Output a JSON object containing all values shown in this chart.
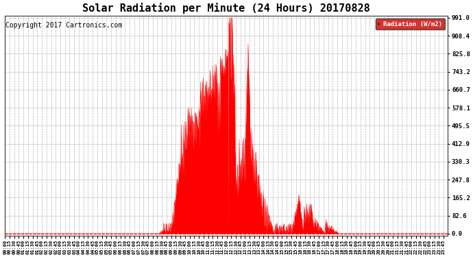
{
  "title": "Solar Radiation per Minute (24 Hours) 20170828",
  "copyright_text": "Copyright 2017 Cartronics.com",
  "legend_label": "Radiation (W/m2)",
  "ytick_labels": [
    "0.0",
    "82.6",
    "165.2",
    "247.8",
    "330.3",
    "412.9",
    "495.5",
    "578.1",
    "660.7",
    "743.2",
    "825.8",
    "908.4",
    "991.0"
  ],
  "ymax": 991.0,
  "fill_color": "#ff0000",
  "line_color": "#ff0000",
  "legend_bg": "#cc0000",
  "legend_text_color": "#ffffff",
  "title_fontsize": 11,
  "copyright_fontsize": 7,
  "bg_color": "#ffffff",
  "grid_color": "#aaaaaa",
  "xtick_interval_minutes": 15,
  "total_minutes": 1440
}
